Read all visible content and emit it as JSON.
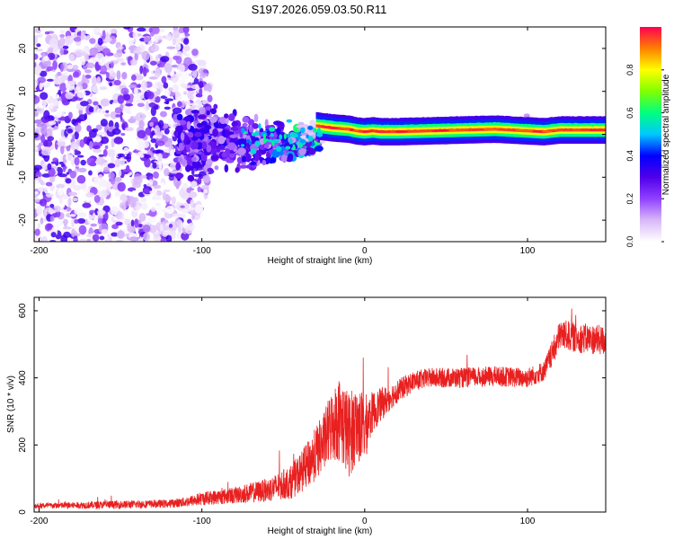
{
  "title": "S197.2026.059.03.50.R11",
  "chart_data": [
    {
      "type": "heatmap",
      "name": "spectrogram",
      "xlabel": "Height of straight line (km)",
      "ylabel": "Frequency (Hz)",
      "xlim": [
        -203,
        148
      ],
      "ylim": [
        -25,
        25
      ],
      "xticks": [
        -200,
        -100,
        0,
        100
      ],
      "xtick_labels": [
        "-200",
        "-100",
        "0",
        "100"
      ],
      "yticks": [
        -20,
        -10,
        0,
        10,
        20
      ],
      "ytick_labels": [
        "-20",
        "-10",
        "0",
        "10",
        "20"
      ],
      "colorbar": {
        "label": "Normalized spectral amplitude",
        "range": [
          0,
          1
        ],
        "ticks": [
          0.0,
          0.2,
          0.4,
          0.6,
          0.8
        ],
        "tick_labels": [
          "0.0",
          "0.2",
          "0.4",
          "0.6",
          "0.8"
        ],
        "colors": [
          "#ffffff",
          "#d8b8f8",
          "#9040ff",
          "#5000e8",
          "#0000ff",
          "#00c8ff",
          "#00ff80",
          "#80ff00",
          "#ffff00",
          "#ff8000",
          "#ff0050"
        ]
      },
      "ridge": {
        "description": "narrow carrier line near 1 Hz for heights above about -30 km",
        "x": [
          -30,
          -20,
          -10,
          -5,
          0,
          5,
          10,
          20,
          40,
          60,
          80,
          90,
          100,
          110,
          120,
          148
        ],
        "frequency": [
          2,
          1.5,
          1.2,
          0.8,
          0.6,
          0.8,
          0.6,
          0.6,
          0.8,
          1.0,
          1.2,
          1.0,
          0.8,
          0.6,
          1.0,
          1.0
        ]
      }
    },
    {
      "type": "line",
      "name": "snr",
      "xlabel": "Height of straight line (km)",
      "ylabel": "SNR (10 * v/v)",
      "xlim": [
        -203,
        148
      ],
      "ylim": [
        0,
        640
      ],
      "xticks": [
        -200,
        -100,
        0,
        100
      ],
      "xtick_labels": [
        "-200",
        "-100",
        "0",
        "100"
      ],
      "yticks": [
        0,
        200,
        400,
        600
      ],
      "ytick_labels": [
        "0",
        "200",
        "400",
        "600"
      ],
      "color": "#e82020",
      "series": [
        {
          "name": "SNR envelope",
          "x": [
            -203,
            -180,
            -150,
            -120,
            -110,
            -100,
            -80,
            -60,
            -45,
            -35,
            -25,
            -20,
            -15,
            -10,
            -5,
            0,
            5,
            10,
            15,
            20,
            30,
            40,
            60,
            80,
            100,
            110,
            115,
            120,
            130,
            140,
            148
          ],
          "y": [
            18,
            20,
            22,
            25,
            30,
            40,
            50,
            65,
            90,
            140,
            210,
            260,
            280,
            230,
            260,
            250,
            300,
            320,
            340,
            360,
            390,
            400,
            400,
            405,
            400,
            420,
            470,
            530,
            520,
            515,
            510
          ],
          "spread": [
            8,
            10,
            12,
            12,
            15,
            20,
            25,
            35,
            50,
            70,
            90,
            110,
            130,
            130,
            120,
            100,
            60,
            50,
            40,
            35,
            30,
            30,
            30,
            30,
            30,
            30,
            40,
            45,
            45,
            45,
            45
          ]
        }
      ]
    }
  ]
}
